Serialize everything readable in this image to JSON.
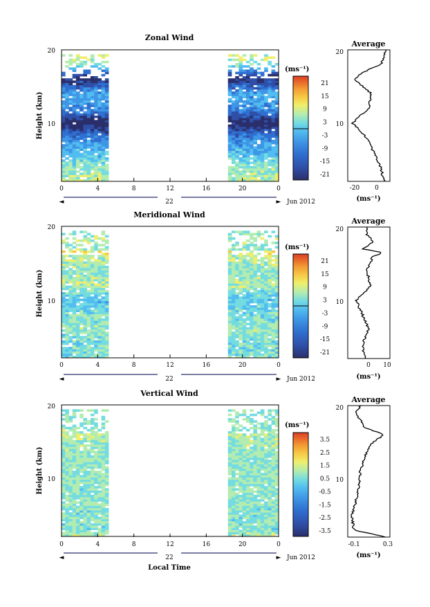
{
  "colorbar_colors": [
    "#2a2f6b",
    "#2f4fa8",
    "#2f6fd0",
    "#3f96e6",
    "#52bdf0",
    "#74dce0",
    "#b2ecb0",
    "#f0ee6a",
    "#f7c844",
    "#f29a33",
    "#ea6a2a",
    "#d93f25"
  ],
  "panels": [
    {
      "title": "Zonal Wind",
      "ylabel": "Height (km)",
      "y_ticks": [
        "20",
        "10"
      ],
      "x_ticks": [
        "0",
        "4",
        "8",
        "12",
        "16",
        "20",
        "0"
      ],
      "date_center": "22",
      "date_label": "Jun 2012",
      "colorbar_unit": "(ms⁻¹)",
      "colorbar_ticks": [
        "21",
        "15",
        "9",
        "3",
        "-3",
        "-9",
        "-15",
        "-21"
      ],
      "avg_title": "Average",
      "avg_y_ticks": [
        "20",
        "10"
      ],
      "avg_x_ticks": [
        "-20",
        "0"
      ],
      "avg_xunit": "(ms⁻¹)"
    },
    {
      "title": "Meridional Wind",
      "ylabel": "Height (km)",
      "y_ticks": [
        "20",
        "10"
      ],
      "x_ticks": [
        "0",
        "4",
        "8",
        "12",
        "16",
        "20",
        "0"
      ],
      "date_center": "22",
      "date_label": "Jun 2012",
      "colorbar_unit": "(ms⁻¹)",
      "colorbar_ticks": [
        "21",
        "15",
        "9",
        "3",
        "-3",
        "-9",
        "-15",
        "-21"
      ],
      "avg_title": "Average",
      "avg_y_ticks": [
        "20",
        "10"
      ],
      "avg_x_ticks": [
        "0",
        "10"
      ],
      "avg_xunit": "(ms⁻¹)"
    },
    {
      "title": "Vertical Wind",
      "ylabel": "Height (km)",
      "y_ticks": [
        "20",
        "10"
      ],
      "x_ticks": [
        "0",
        "4",
        "8",
        "12",
        "16",
        "20",
        "0"
      ],
      "date_center": "22",
      "date_label": "Jun 2012",
      "xlabel": "Local Time",
      "colorbar_unit": "(ms⁻¹)",
      "colorbar_ticks": [
        "3.5",
        "2.5",
        "1.5",
        "0.5",
        "-0.5",
        "-1.5",
        "-2.5",
        "-3.5"
      ],
      "avg_title": "Average",
      "avg_y_ticks": [
        "20",
        "10"
      ],
      "avg_x_ticks": [
        "-0.1",
        "0.3"
      ],
      "avg_xunit": "(ms⁻¹)"
    }
  ],
  "chart_data": [
    {
      "type": "heatmap",
      "title": "Zonal Wind",
      "ylabel": "Height (km)",
      "x_range_hours": [
        0,
        24
      ],
      "y_range_km": [
        2,
        20
      ],
      "data_segments_hours": [
        [
          0,
          5.3
        ],
        [
          18.5,
          24
        ]
      ],
      "color_range": [
        -24,
        24
      ],
      "profile": [
        [
          2,
          3
        ],
        [
          4,
          0
        ],
        [
          6,
          -6
        ],
        [
          8,
          -12
        ],
        [
          10,
          -24
        ],
        [
          12,
          -10
        ],
        [
          14,
          -8
        ],
        [
          16,
          -22
        ],
        [
          17,
          -14
        ],
        [
          18,
          0
        ],
        [
          19,
          3
        ],
        [
          20,
          4
        ]
      ]
    },
    {
      "type": "heatmap",
      "title": "Meridional Wind",
      "ylabel": "Height (km)",
      "x_range_hours": [
        0,
        24
      ],
      "y_range_km": [
        2,
        20
      ],
      "data_segments_hours": [
        [
          0,
          5.3
        ],
        [
          18.5,
          24
        ]
      ],
      "color_range": [
        -24,
        24
      ],
      "profile": [
        [
          2,
          -1
        ],
        [
          4,
          -2
        ],
        [
          6,
          1
        ],
        [
          8,
          -2
        ],
        [
          10,
          -5
        ],
        [
          12,
          2
        ],
        [
          14,
          0
        ],
        [
          16,
          3
        ],
        [
          16.5,
          8
        ],
        [
          17,
          -2
        ],
        [
          18,
          3
        ],
        [
          19,
          0
        ]
      ]
    },
    {
      "type": "heatmap",
      "title": "Vertical Wind",
      "ylabel": "Height (km)",
      "xlabel": "Local Time",
      "x_range_hours": [
        0,
        24
      ],
      "y_range_km": [
        2,
        20
      ],
      "data_segments_hours": [
        [
          0,
          5.3
        ],
        [
          18.5,
          24
        ]
      ],
      "color_range": [
        -4,
        4
      ],
      "profile": [
        [
          2,
          0.3
        ],
        [
          3,
          -0.08
        ],
        [
          5,
          -0.1
        ],
        [
          7,
          -0.05
        ],
        [
          9,
          -0.02
        ],
        [
          11,
          0.0
        ],
        [
          13,
          0.05
        ],
        [
          15,
          0.15
        ],
        [
          16,
          0.28
        ],
        [
          17,
          0.05
        ],
        [
          19,
          -0.05
        ],
        [
          20,
          0.0
        ]
      ]
    }
  ]
}
